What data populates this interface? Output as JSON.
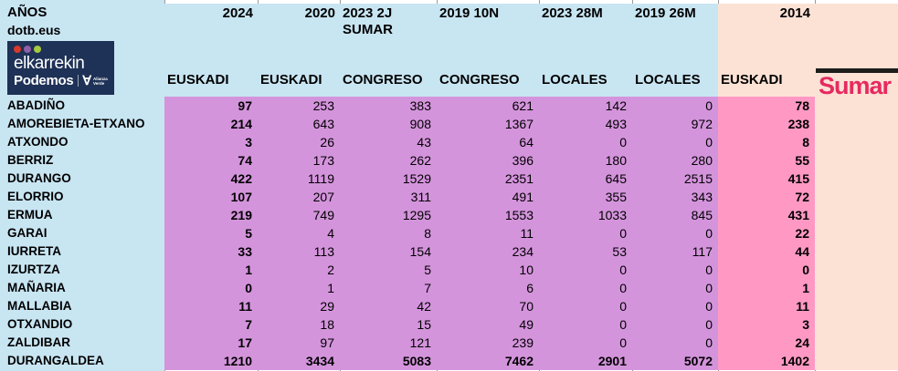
{
  "colors": {
    "header_blue": "#C8E5F2",
    "body_purple": "#D494DC",
    "pink_2014": "#FF99C4",
    "peach": "#FCE2D5",
    "sumar_magenta": "#E62A60",
    "logo_navy": "#1E3156",
    "dot_red": "#D93A2B",
    "dot_purple": "#8E5FA8",
    "dot_green": "#A5C93F"
  },
  "header": {
    "anos": "AÑOS",
    "site": "dotb.eus",
    "years": [
      "2024",
      "2020",
      "2023 2J",
      "2019 10N",
      "2023 28M",
      "2019 26M",
      "2014"
    ],
    "year_sub": "SUMAR",
    "types": [
      "EUSKADI",
      "EUSKADI",
      "CONGRESO",
      "CONGRESO",
      "LOCALES",
      "LOCALES",
      "EUSKADI"
    ]
  },
  "logo": {
    "top": "elkarrekin",
    "bottom": "Podemos",
    "alianza_symbol": "∀",
    "alianza_text": "Alianza Verde"
  },
  "sumar": {
    "label": "Sumar"
  },
  "table": {
    "rows": [
      {
        "name": "ABADIÑO",
        "values": [
          97,
          253,
          383,
          621,
          142,
          0,
          78
        ]
      },
      {
        "name": "AMOREBIETA-ETXANO",
        "values": [
          214,
          643,
          908,
          1367,
          493,
          972,
          238
        ]
      },
      {
        "name": "ATXONDO",
        "values": [
          3,
          26,
          43,
          64,
          0,
          0,
          8
        ]
      },
      {
        "name": "BERRIZ",
        "values": [
          74,
          173,
          262,
          396,
          180,
          280,
          55
        ]
      },
      {
        "name": "DURANGO",
        "values": [
          422,
          1119,
          1529,
          2351,
          645,
          2515,
          415
        ]
      },
      {
        "name": "ELORRIO",
        "values": [
          107,
          207,
          311,
          491,
          355,
          343,
          72
        ]
      },
      {
        "name": "ERMUA",
        "values": [
          219,
          749,
          1295,
          1553,
          1033,
          845,
          431
        ]
      },
      {
        "name": "GARAI",
        "values": [
          5,
          4,
          8,
          11,
          0,
          0,
          22
        ]
      },
      {
        "name": "IURRETA",
        "values": [
          33,
          113,
          154,
          234,
          53,
          117,
          44
        ]
      },
      {
        "name": "IZURTZA",
        "values": [
          1,
          2,
          5,
          10,
          0,
          0,
          0
        ]
      },
      {
        "name": "MAÑARIA",
        "values": [
          0,
          1,
          7,
          6,
          0,
          0,
          1
        ]
      },
      {
        "name": "MALLABIA",
        "values": [
          11,
          29,
          42,
          70,
          0,
          0,
          11
        ]
      },
      {
        "name": "OTXANDIO",
        "values": [
          7,
          18,
          15,
          49,
          0,
          0,
          3
        ]
      },
      {
        "name": "ZALDIBAR",
        "values": [
          17,
          97,
          121,
          239,
          0,
          0,
          24
        ]
      },
      {
        "name": "DURANGALDEA",
        "values": [
          1210,
          3434,
          5083,
          7462,
          2901,
          5072,
          1402
        ],
        "total": true
      }
    ]
  }
}
